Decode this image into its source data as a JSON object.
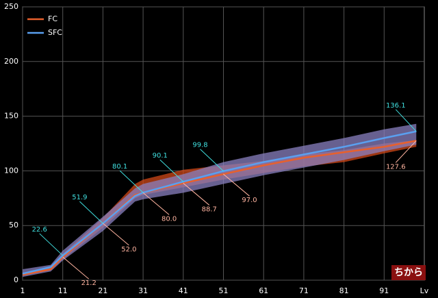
{
  "chart_data": {
    "type": "line",
    "title": "ちから",
    "x_label": "Lv",
    "x": [
      1,
      8,
      11,
      21,
      29,
      31,
      41,
      51,
      61,
      71,
      81,
      91,
      99
    ],
    "series": [
      {
        "name": "FC",
        "color": "#e8602c",
        "band_color": "#d04818",
        "label_color": "#ffb4a0",
        "values": [
          5,
          10,
          21.2,
          52.0,
          78,
          80.0,
          88.7,
          97.0,
          105,
          112,
          117,
          122,
          127.6
        ],
        "value_labels": [
          null,
          null,
          "21.2",
          "52.0",
          null,
          "80.0",
          "88.7",
          "97.0",
          null,
          null,
          null,
          null,
          "127.6"
        ],
        "low": [
          4,
          9,
          19,
          48,
          75,
          78,
          85,
          92,
          98,
          104,
          108,
          116,
          122
        ],
        "high": [
          7,
          11,
          24,
          57,
          88,
          92,
          101,
          105,
          109,
          115,
          119,
          125,
          128
        ]
      },
      {
        "name": "SFC",
        "color": "#5aa0f0",
        "band_color": "#8a80c0",
        "label_color": "#40e0e0",
        "values": [
          6,
          12,
          22.6,
          51.9,
          77,
          80.1,
          90.1,
          99.8,
          108,
          115,
          122,
          130,
          136.1
        ],
        "value_labels": [
          null,
          null,
          "22.6",
          "51.9",
          null,
          "80.1",
          "90.1",
          "99.8",
          null,
          null,
          null,
          null,
          "136.1"
        ],
        "low": [
          3,
          8,
          18,
          45,
          72,
          74,
          80,
          88,
          96,
          103,
          110,
          118,
          124
        ],
        "high": [
          10,
          14,
          27,
          58,
          84,
          88,
          97,
          108,
          116,
          123,
          130,
          138,
          143
        ]
      }
    ],
    "xlim": [
      1,
      101
    ],
    "xticks": [
      1,
      11,
      21,
      31,
      41,
      51,
      61,
      71,
      81,
      91
    ],
    "ylim": [
      0,
      250
    ],
    "yticks": [
      0,
      50,
      100,
      150,
      200,
      250
    ],
    "grid": true,
    "legend": "top-left"
  }
}
